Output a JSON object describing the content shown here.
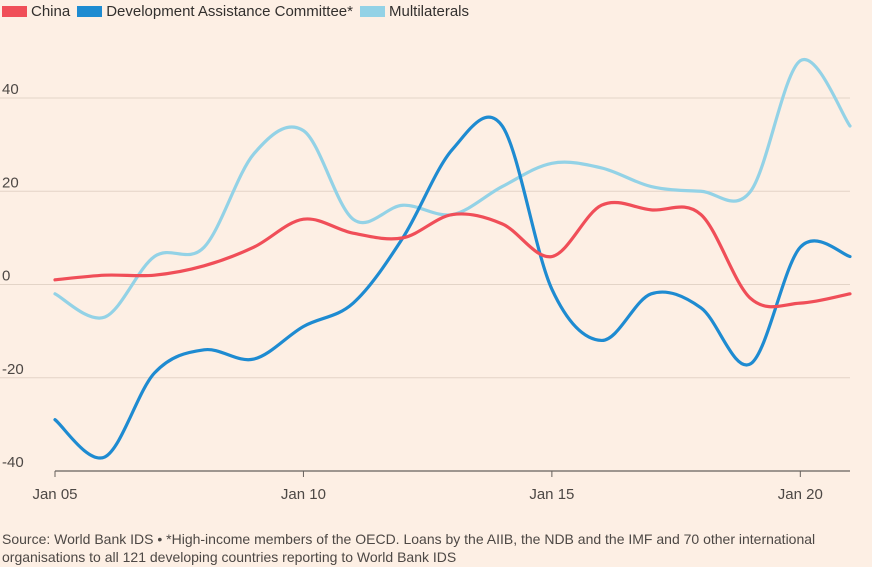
{
  "chart_data": {
    "type": "line",
    "title": "",
    "xlabel": "",
    "ylabel": "",
    "ylim": [
      -40,
      55
    ],
    "xlim": [
      2005,
      2021
    ],
    "yticks": [
      -40,
      -20,
      0,
      20,
      40
    ],
    "xticks": [
      {
        "value": 2005,
        "label": "Jan 05"
      },
      {
        "value": 2010,
        "label": "Jan 10"
      },
      {
        "value": 2015,
        "label": "Jan 15"
      },
      {
        "value": 2020,
        "label": "Jan 20"
      }
    ],
    "x": [
      2005,
      2006,
      2007,
      2008,
      2009,
      2010,
      2011,
      2012,
      2013,
      2014,
      2015,
      2016,
      2017,
      2018,
      2019,
      2020,
      2021
    ],
    "series": [
      {
        "name": "China",
        "color": "#f04e58",
        "values": [
          1,
          2,
          2,
          4,
          8,
          14,
          11,
          10,
          15,
          13,
          6,
          17,
          16,
          15,
          -3,
          -4,
          -2
        ]
      },
      {
        "name": "Development Assistance Committee*",
        "color": "#1e8bd1",
        "values": [
          -29,
          -37,
          -19,
          -14,
          -16,
          -9,
          -4,
          10,
          29,
          34,
          -1,
          -12,
          -2,
          -5,
          -17,
          8,
          6
        ]
      },
      {
        "name": "Multilaterals",
        "color": "#93d2e6",
        "values": [
          -2,
          -7,
          6,
          8,
          28,
          33,
          14,
          17,
          15,
          21,
          26,
          25,
          21,
          20,
          20,
          48,
          34
        ]
      }
    ]
  },
  "source_note": "Source: World Bank IDS • *High-income members of the OECD. Loans by the AIIB, the NDB and the IMF and 70 other international organisations to all 121 developing countries reporting to World Bank IDS"
}
